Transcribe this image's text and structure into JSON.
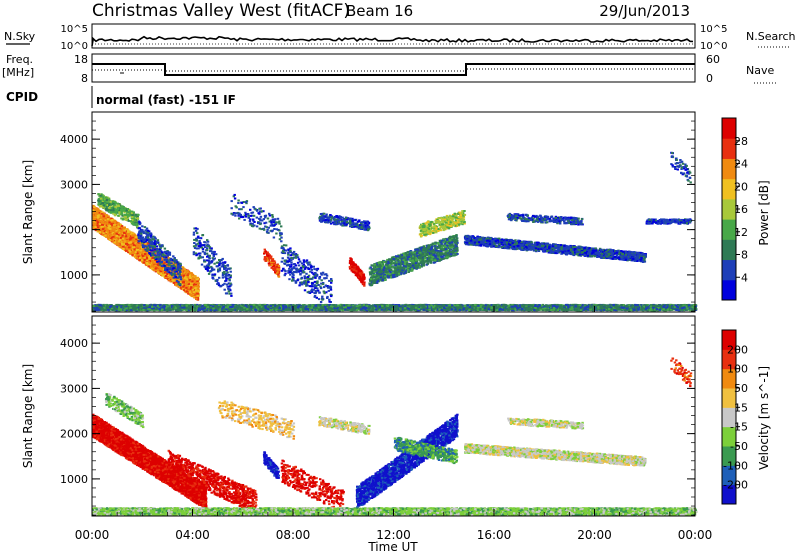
{
  "header": {
    "station": "Christmas Valley West (fitACF)",
    "beam": "Beam 16",
    "date": "29/Jun/2013"
  },
  "panel_nsky": {
    "left_label": "N.Sky",
    "left_ticks": [
      "10^5",
      "10^0"
    ],
    "right_ticks": [
      "10^5",
      "10^0"
    ],
    "right_label": "N.Search"
  },
  "panel_freq": {
    "left_label_1": "Freq.",
    "left_label_2": "[MHz]",
    "left_ticks": [
      "18",
      "8"
    ],
    "right_ticks": [
      "60",
      "0"
    ],
    "right_label": "Nave"
  },
  "cpid": {
    "label": "CPID",
    "text": "normal (fast) -151 IF"
  },
  "chart_data": [
    {
      "type": "heatmap",
      "name": "power",
      "ylabel": "Slant Range [km]",
      "yticks": [
        "4000",
        "3000",
        "2000",
        "1000"
      ],
      "ylim": [
        180,
        4600
      ],
      "colorbar_label": "Power [dB]",
      "colorbar_ticks": [
        "28",
        "24",
        "20",
        "16",
        "12",
        "8",
        "4"
      ],
      "colors": [
        "#0000dd",
        "#1e3fb8",
        "#2f7a55",
        "#48a848",
        "#a8c83a",
        "#f0c020",
        "#f08a10",
        "#e83010",
        "#dd0000"
      ]
    },
    {
      "type": "heatmap",
      "name": "velocity",
      "ylabel": "Slant Range [km]",
      "yticks": [
        "4000",
        "3000",
        "2000",
        "1000"
      ],
      "ylim": [
        180,
        4600
      ],
      "colorbar_label": "Velocity [m s^-1]",
      "colorbar_ticks": [
        "200",
        "100",
        "50",
        "15",
        "-15",
        "-50",
        "-100",
        "-200"
      ],
      "colors": [
        "#1010cc",
        "#1e5fb8",
        "#3a9a50",
        "#7ccf3a",
        "#c8c8c8",
        "#f0c040",
        "#f08a10",
        "#e83010",
        "#dd0000"
      ]
    }
  ],
  "time_axis": {
    "ticks": [
      "00:00",
      "04:00",
      "08:00",
      "12:00",
      "16:00",
      "20:00",
      "00:00"
    ],
    "label": "Time UT"
  }
}
